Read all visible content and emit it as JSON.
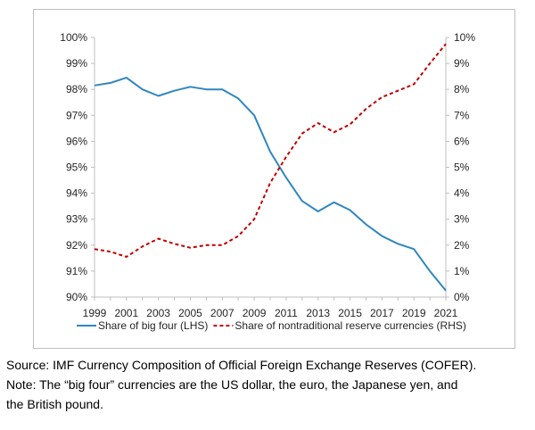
{
  "chart_data": {
    "type": "line",
    "x": [
      1999,
      2000,
      2001,
      2002,
      2003,
      2004,
      2005,
      2006,
      2007,
      2008,
      2009,
      2010,
      2011,
      2012,
      2013,
      2014,
      2015,
      2016,
      2017,
      2018,
      2019,
      2020,
      2021
    ],
    "x_tick_labels": [
      "1999",
      "2001",
      "2003",
      "2005",
      "2007",
      "2009",
      "2011",
      "2013",
      "2015",
      "2017",
      "2019",
      "2021"
    ],
    "y_left": {
      "lim": [
        90,
        100
      ],
      "tick_labels": [
        "90%",
        "91%",
        "92%",
        "93%",
        "94%",
        "95%",
        "96%",
        "97%",
        "98%",
        "99%",
        "100%"
      ]
    },
    "y_right": {
      "lim": [
        0,
        10
      ],
      "tick_labels": [
        "0%",
        "1%",
        "2%",
        "3%",
        "4%",
        "5%",
        "6%",
        "7%",
        "8%",
        "9%",
        "10%"
      ]
    },
    "series": [
      {
        "name": "Share of big four (LHS)",
        "axis": "left",
        "style": "solid",
        "color": "#2E86C1",
        "values": [
          98.15,
          98.25,
          98.45,
          98.0,
          97.75,
          97.95,
          98.1,
          98.0,
          98.0,
          97.65,
          97.0,
          95.6,
          94.6,
          93.7,
          93.3,
          93.65,
          93.35,
          92.8,
          92.35,
          92.05,
          91.85,
          91.0,
          90.25
        ]
      },
      {
        "name": "Share of nontraditional reserve currencies (RHS)",
        "axis": "right",
        "style": "dashed",
        "color": "#C00000",
        "values": [
          1.85,
          1.75,
          1.55,
          1.95,
          2.25,
          2.05,
          1.9,
          2.0,
          2.0,
          2.35,
          3.0,
          4.4,
          5.4,
          6.3,
          6.7,
          6.35,
          6.65,
          7.25,
          7.7,
          7.95,
          8.2,
          9.0,
          9.75
        ]
      }
    ],
    "legend_position": "bottom",
    "grid": false
  },
  "caption": {
    "source": "Source: IMF Currency Composition of Official Foreign Exchange Reserves (COFER).",
    "note_line1": "Note: The “big four” currencies are the US dollar, the euro, the Japanese yen, and",
    "note_line2": "the British pound."
  }
}
